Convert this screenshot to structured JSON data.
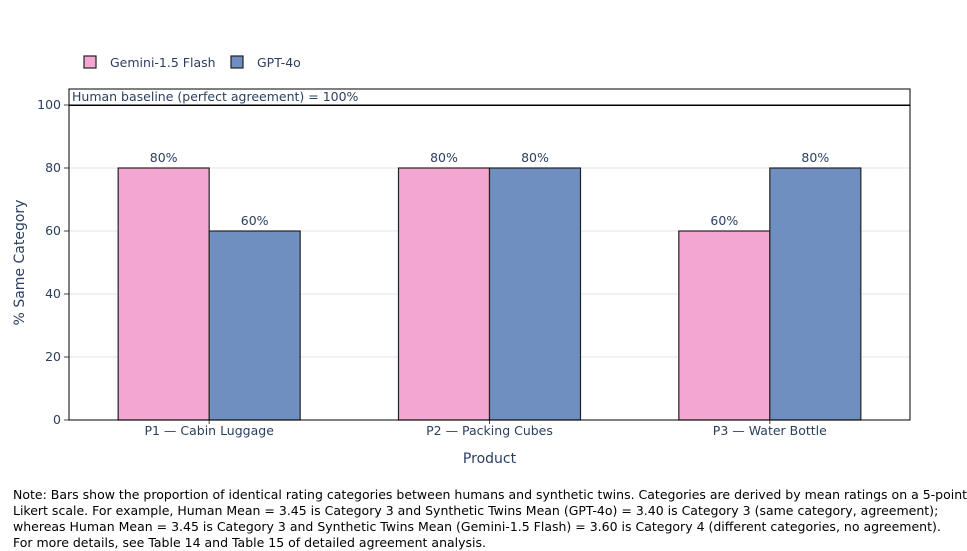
{
  "chart_data": {
    "type": "bar",
    "categories": [
      "P1 — Cabin Luggage",
      "P2 — Packing Cubes",
      "P3 — Water Bottle"
    ],
    "series": [
      {
        "name": "Gemini-1.5 Flash",
        "values": [
          80,
          80,
          60
        ],
        "labels": [
          "80%",
          "80%",
          "60%"
        ],
        "color": "#f4a6d3"
      },
      {
        "name": "GPT-4o",
        "values": [
          60,
          80,
          80
        ],
        "labels": [
          "60%",
          "80%",
          "80%"
        ],
        "color": "#6e8fc0"
      }
    ],
    "xlabel": "Product",
    "ylabel": "% Same Category",
    "ylim": [
      0,
      100
    ],
    "yticks": [
      0,
      20,
      40,
      60,
      80,
      100
    ],
    "grid": "horizontal",
    "legend": "top-left",
    "baseline": {
      "value": 100,
      "label": "Human baseline (perfect agreement) = 100%"
    }
  },
  "note": {
    "lines": [
      "Note: Bars show the proportion of identical rating categories between humans and synthetic twins. Categories are derived by mean ratings on a 5-point",
      "Likert scale. For example, Human Mean = 3.45 is Category 3 and Synthetic Twins Mean (GPT-4o) = 3.40 is Category 3 (same category, agreement);",
      "whereas Human Mean = 3.45 is Category 3 and Synthetic Twins Mean (Gemini-1.5 Flash) = 3.60 is Category 4 (different categories, no agreement).",
      "For more details, see Table 14 and Table 15 of detailed agreement analysis."
    ]
  }
}
